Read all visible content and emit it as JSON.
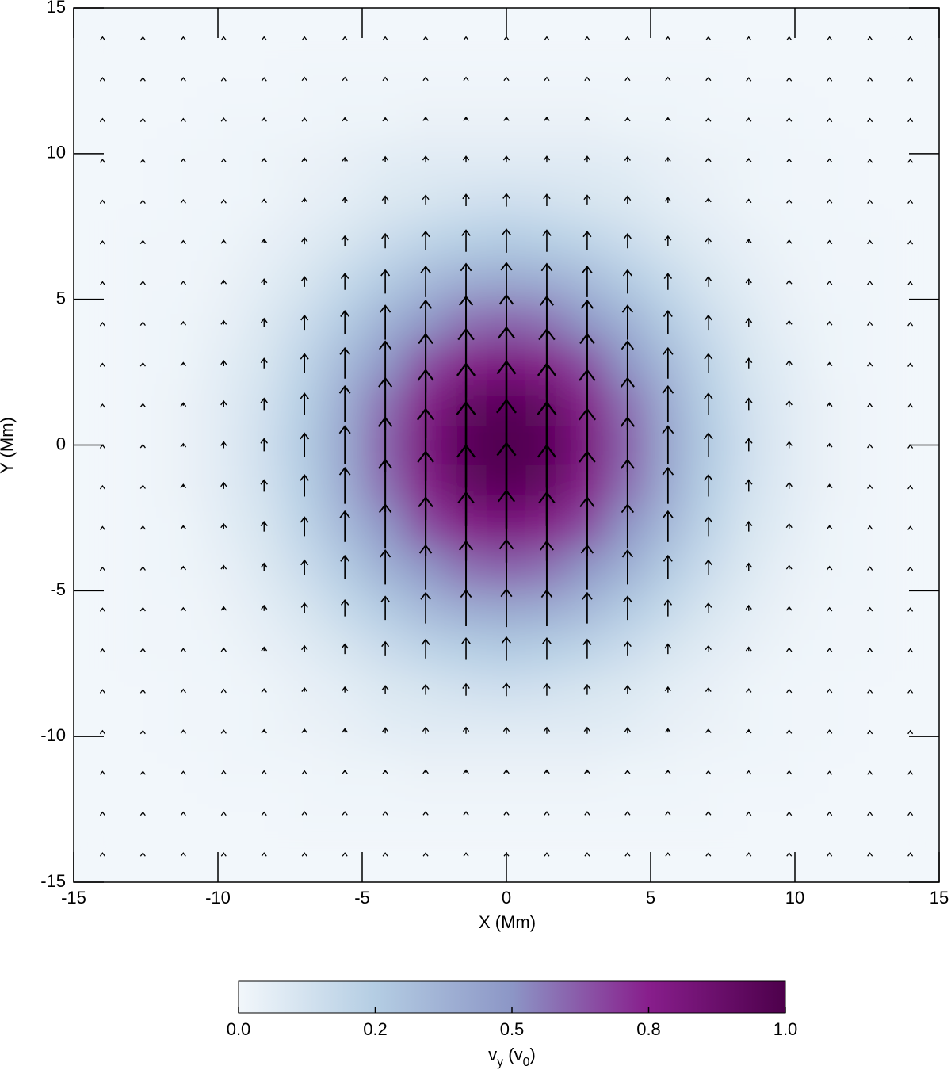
{
  "chart_data": {
    "type": "quiver-heatmap",
    "xlabel": "X (Mm)",
    "ylabel": "Y (Mm)",
    "xlim": [
      -15,
      15
    ],
    "ylim": [
      -15,
      15
    ],
    "xticks": [
      -15,
      -10,
      -5,
      0,
      5,
      10,
      15
    ],
    "yticks": [
      -15,
      -10,
      -5,
      0,
      5,
      10,
      15
    ],
    "x": [
      -14,
      -12.6,
      -11.2,
      -9.8,
      -8.4,
      -7,
      -5.6,
      -4.2,
      -2.8,
      -1.4,
      0,
      1.4,
      2.8,
      4.2,
      5.6,
      7,
      8.4,
      9.8,
      11.2,
      12.6,
      14
    ],
    "y": [
      -14,
      -12.6,
      -11.2,
      -9.8,
      -8.4,
      -7,
      -5.6,
      -4.2,
      -2.8,
      -1.4,
      0,
      1.4,
      2.8,
      4.2,
      5.6,
      7,
      8.4,
      9.8,
      11.2,
      12.6,
      14
    ],
    "z": [
      [
        0,
        0,
        0,
        0,
        0,
        0,
        0,
        0,
        0,
        0,
        0,
        0,
        0,
        0,
        0,
        0,
        0,
        0,
        0,
        0,
        0
      ],
      [
        0,
        0,
        0,
        0,
        0,
        0.01,
        0.01,
        0.01,
        0.01,
        0.01,
        0.01,
        0.01,
        0.01,
        0.01,
        0.01,
        0.01,
        0,
        0,
        0,
        0,
        0
      ],
      [
        0,
        0,
        0,
        0.01,
        0.01,
        0.01,
        0.02,
        0.02,
        0.03,
        0.03,
        0.03,
        0.03,
        0.03,
        0.02,
        0.02,
        0.01,
        0.01,
        0.01,
        0,
        0,
        0
      ],
      [
        0,
        0,
        0.01,
        0.01,
        0.02,
        0.03,
        0.04,
        0.06,
        0.07,
        0.07,
        0.07,
        0.07,
        0.07,
        0.06,
        0.04,
        0.03,
        0.02,
        0.01,
        0.01,
        0,
        0
      ],
      [
        0,
        0,
        0.01,
        0.01,
        0.02,
        0.04,
        0.06,
        0.09,
        0.11,
        0.13,
        0.14,
        0.13,
        0.11,
        0.09,
        0.06,
        0.04,
        0.02,
        0.01,
        0.01,
        0,
        0
      ],
      [
        0,
        0.01,
        0.01,
        0.02,
        0.04,
        0.07,
        0.11,
        0.16,
        0.21,
        0.24,
        0.26,
        0.24,
        0.21,
        0.16,
        0.11,
        0.07,
        0.04,
        0.02,
        0.01,
        0.01,
        0
      ],
      [
        0,
        0.01,
        0.01,
        0.03,
        0.06,
        0.11,
        0.18,
        0.26,
        0.34,
        0.4,
        0.42,
        0.4,
        0.34,
        0.26,
        0.18,
        0.11,
        0.06,
        0.03,
        0.01,
        0.01,
        0
      ],
      [
        0,
        0.01,
        0.02,
        0.04,
        0.09,
        0.16,
        0.26,
        0.38,
        0.49,
        0.58,
        0.61,
        0.58,
        0.49,
        0.38,
        0.26,
        0.16,
        0.09,
        0.04,
        0.02,
        0.01,
        0
      ],
      [
        0,
        0.01,
        0.02,
        0.06,
        0.11,
        0.21,
        0.34,
        0.49,
        0.65,
        0.76,
        0.8,
        0.76,
        0.65,
        0.49,
        0.34,
        0.21,
        0.11,
        0.06,
        0.02,
        0.01,
        0
      ],
      [
        0,
        0.01,
        0.03,
        0.07,
        0.13,
        0.24,
        0.4,
        0.58,
        0.76,
        0.9,
        0.95,
        0.9,
        0.76,
        0.58,
        0.4,
        0.24,
        0.13,
        0.07,
        0.03,
        0.01,
        0
      ],
      [
        0,
        0.01,
        0.03,
        0.07,
        0.14,
        0.26,
        0.42,
        0.61,
        0.8,
        0.95,
        1.0,
        0.95,
        0.8,
        0.61,
        0.42,
        0.26,
        0.14,
        0.07,
        0.03,
        0.01,
        0
      ],
      [
        0,
        0.01,
        0.03,
        0.07,
        0.13,
        0.24,
        0.4,
        0.58,
        0.76,
        0.9,
        0.95,
        0.9,
        0.76,
        0.58,
        0.4,
        0.24,
        0.13,
        0.07,
        0.03,
        0.01,
        0
      ],
      [
        0,
        0.01,
        0.02,
        0.06,
        0.11,
        0.21,
        0.34,
        0.49,
        0.65,
        0.76,
        0.8,
        0.76,
        0.65,
        0.49,
        0.34,
        0.21,
        0.11,
        0.06,
        0.02,
        0.01,
        0
      ],
      [
        0,
        0.01,
        0.02,
        0.04,
        0.09,
        0.16,
        0.26,
        0.38,
        0.49,
        0.58,
        0.61,
        0.58,
        0.49,
        0.38,
        0.26,
        0.16,
        0.09,
        0.04,
        0.02,
        0.01,
        0
      ],
      [
        0,
        0.01,
        0.01,
        0.03,
        0.06,
        0.11,
        0.18,
        0.26,
        0.34,
        0.4,
        0.42,
        0.4,
        0.34,
        0.26,
        0.18,
        0.11,
        0.06,
        0.03,
        0.01,
        0.01,
        0
      ],
      [
        0,
        0.01,
        0.01,
        0.02,
        0.04,
        0.07,
        0.11,
        0.16,
        0.21,
        0.24,
        0.26,
        0.24,
        0.21,
        0.16,
        0.11,
        0.07,
        0.04,
        0.02,
        0.01,
        0.01,
        0
      ],
      [
        0,
        0,
        0.01,
        0.01,
        0.02,
        0.04,
        0.06,
        0.09,
        0.11,
        0.13,
        0.14,
        0.13,
        0.11,
        0.09,
        0.06,
        0.04,
        0.02,
        0.01,
        0.01,
        0,
        0
      ],
      [
        0,
        0,
        0.01,
        0.01,
        0.02,
        0.03,
        0.04,
        0.06,
        0.07,
        0.07,
        0.07,
        0.07,
        0.07,
        0.06,
        0.04,
        0.03,
        0.02,
        0.01,
        0.01,
        0,
        0
      ],
      [
        0,
        0,
        0,
        0.01,
        0.01,
        0.01,
        0.02,
        0.02,
        0.03,
        0.03,
        0.03,
        0.03,
        0.03,
        0.02,
        0.02,
        0.01,
        0.01,
        0.01,
        0,
        0,
        0
      ],
      [
        0,
        0,
        0,
        0,
        0,
        0.01,
        0.01,
        0.01,
        0.01,
        0.01,
        0.01,
        0.01,
        0.01,
        0.01,
        0.01,
        0.01,
        0,
        0,
        0,
        0,
        0
      ],
      [
        0,
        0,
        0,
        0,
        0,
        0,
        0,
        0,
        0,
        0,
        0,
        0,
        0,
        0,
        0,
        0,
        0,
        0,
        0,
        0,
        0
      ]
    ],
    "arrow_color": "#000000",
    "colorbar": {
      "label": "vy (v0)",
      "lim": [
        0,
        1
      ],
      "ticks": [
        {
          "value": 0,
          "label": "0.0"
        },
        {
          "value": 0.25,
          "label": "0.2"
        },
        {
          "value": 0.5,
          "label": "0.5"
        },
        {
          "value": 0.75,
          "label": "0.8"
        },
        {
          "value": 1,
          "label": "1.0"
        }
      ]
    }
  }
}
